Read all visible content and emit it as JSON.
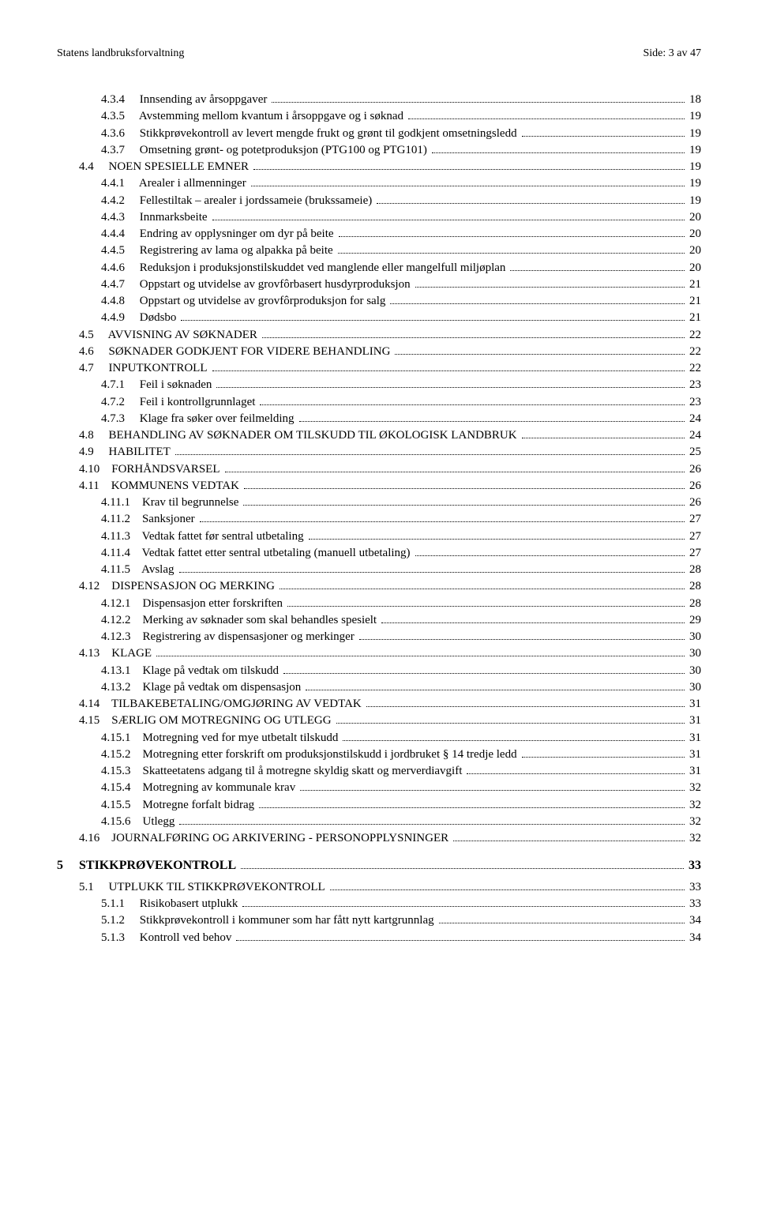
{
  "header": {
    "left": "Statens landbruksforvaltning",
    "right": "Side: 3 av 47"
  },
  "toc": [
    {
      "level": 2,
      "num": "4.3.4",
      "title": "Innsending av årsoppgaver",
      "page": "18"
    },
    {
      "level": 2,
      "num": "4.3.5",
      "title": "Avstemming mellom kvantum i årsoppgave og i søknad",
      "page": "19"
    },
    {
      "level": 2,
      "num": "4.3.6",
      "title": "Stikkprøvekontroll av levert mengde frukt og grønt til godkjent omsetningsledd",
      "page": "19"
    },
    {
      "level": 2,
      "num": "4.3.7",
      "title": "Omsetning grønt- og potetproduksjon (PTG100 og PTG101)",
      "page": "19"
    },
    {
      "level": 1,
      "num": "4.4",
      "title": "NOEN SPESIELLE EMNER",
      "smallcaps": true,
      "page": "19"
    },
    {
      "level": 2,
      "num": "4.4.1",
      "title": "Arealer i allmenninger",
      "page": "19"
    },
    {
      "level": 2,
      "num": "4.4.2",
      "title": "Fellestiltak – arealer i jordssameie (brukssameie)",
      "page": "19"
    },
    {
      "level": 2,
      "num": "4.4.3",
      "title": "Innmarksbeite",
      "page": "20"
    },
    {
      "level": 2,
      "num": "4.4.4",
      "title": "Endring av opplysninger om dyr på beite",
      "page": "20"
    },
    {
      "level": 2,
      "num": "4.4.5",
      "title": "Registrering av lama og alpakka på beite",
      "page": "20"
    },
    {
      "level": 2,
      "num": "4.4.6",
      "title": "Reduksjon i produksjonstilskuddet ved manglende eller mangelfull miljøplan",
      "page": "20"
    },
    {
      "level": 2,
      "num": "4.4.7",
      "title": "Oppstart og utvidelse av grovfôrbasert husdyrproduksjon",
      "page": "21"
    },
    {
      "level": 2,
      "num": "4.4.8",
      "title": "Oppstart og utvidelse av grovfôrproduksjon for salg",
      "page": "21"
    },
    {
      "level": 2,
      "num": "4.4.9",
      "title": "Dødsbo",
      "page": "21"
    },
    {
      "level": 1,
      "num": "4.5",
      "title": "AVVISNING AV SØKNADER",
      "smallcaps": true,
      "page": "22"
    },
    {
      "level": 1,
      "num": "4.6",
      "title": "SØKNADER GODKJENT FOR VIDERE BEHANDLING",
      "smallcaps": true,
      "page": "22"
    },
    {
      "level": 1,
      "num": "4.7",
      "title": "INPUTKONTROLL",
      "smallcaps": true,
      "page": "22"
    },
    {
      "level": 2,
      "num": "4.7.1",
      "title": "Feil i søknaden",
      "page": "23"
    },
    {
      "level": 2,
      "num": "4.7.2",
      "title": "Feil i kontrollgrunnlaget",
      "page": "23"
    },
    {
      "level": 2,
      "num": "4.7.3",
      "title": "Klage fra søker over feilmelding",
      "page": "24"
    },
    {
      "level": 1,
      "num": "4.8",
      "title": "BEHANDLING AV SØKNADER OM TILSKUDD TIL ØKOLOGISK LANDBRUK",
      "smallcaps": true,
      "page": "24"
    },
    {
      "level": 1,
      "num": "4.9",
      "title": "HABILITET",
      "smallcaps": true,
      "page": "25"
    },
    {
      "level": 1,
      "num": "4.10",
      "title": "FORHÅNDSVARSEL",
      "smallcaps": true,
      "page": "26"
    },
    {
      "level": 1,
      "num": "4.11",
      "title": "KOMMUNENS VEDTAK",
      "smallcaps": true,
      "page": "26"
    },
    {
      "level": 2,
      "num": "4.11.1",
      "title": "Krav til begrunnelse",
      "page": "26"
    },
    {
      "level": 2,
      "num": "4.11.2",
      "title": "Sanksjoner",
      "page": "27"
    },
    {
      "level": 2,
      "num": "4.11.3",
      "title": "Vedtak fattet før sentral utbetaling",
      "page": "27"
    },
    {
      "level": 2,
      "num": "4.11.4",
      "title": "Vedtak fattet etter sentral utbetaling (manuell utbetaling)",
      "page": "27"
    },
    {
      "level": 2,
      "num": "4.11.5",
      "title": "Avslag",
      "page": "28"
    },
    {
      "level": 1,
      "num": "4.12",
      "title": "DISPENSASJON OG MERKING",
      "smallcaps": true,
      "page": "28"
    },
    {
      "level": 2,
      "num": "4.12.1",
      "title": "Dispensasjon etter forskriften",
      "page": "28"
    },
    {
      "level": 2,
      "num": "4.12.2",
      "title": "Merking av søknader som skal behandles spesielt",
      "page": "29"
    },
    {
      "level": 2,
      "num": "4.12.3",
      "title": "Registrering av dispensasjoner og merkinger",
      "page": "30"
    },
    {
      "level": 1,
      "num": "4.13",
      "title": "KLAGE",
      "smallcaps": true,
      "page": "30"
    },
    {
      "level": 2,
      "num": "4.13.1",
      "title": "Klage på vedtak om tilskudd",
      "page": "30"
    },
    {
      "level": 2,
      "num": "4.13.2",
      "title": "Klage på vedtak om dispensasjon",
      "page": "30"
    },
    {
      "level": 1,
      "num": "4.14",
      "title": "TILBAKEBETALING/OMGJØRING AV VEDTAK",
      "smallcaps": true,
      "page": "31"
    },
    {
      "level": 1,
      "num": "4.15",
      "title": "SÆRLIG OM MOTREGNING OG UTLEGG",
      "smallcaps": true,
      "page": "31"
    },
    {
      "level": 2,
      "num": "4.15.1",
      "title": "Motregning ved for mye utbetalt tilskudd",
      "page": "31"
    },
    {
      "level": 2,
      "num": "4.15.2",
      "title": "Motregning etter forskrift om produksjonstilskudd i jordbruket § 14 tredje ledd",
      "page": "31"
    },
    {
      "level": 2,
      "num": "4.15.3",
      "title": "Skatteetatens adgang til å motregne skyldig skatt og merverdiavgift",
      "page": "31"
    },
    {
      "level": 2,
      "num": "4.15.4",
      "title": "Motregning av kommunale krav",
      "page": "32"
    },
    {
      "level": 2,
      "num": "4.15.5",
      "title": "Motregne forfalt bidrag",
      "page": "32"
    },
    {
      "level": 2,
      "num": "4.15.6",
      "title": "Utlegg",
      "page": "32"
    },
    {
      "level": 1,
      "num": "4.16",
      "title": "JOURNALFØRING OG ARKIVERING - PERSONOPPLYSNINGER",
      "smallcaps": true,
      "page": "32"
    },
    {
      "level": 0,
      "num": "5",
      "title": "STIKKPRØVEKONTROLL",
      "page": "33",
      "bold": true
    },
    {
      "level": 1,
      "num": "5.1",
      "title": "UTPLUKK TIL STIKKPRØVEKONTROLL",
      "smallcaps": true,
      "page": "33"
    },
    {
      "level": 2,
      "num": "5.1.1",
      "title": "Risikobasert utplukk",
      "page": "33"
    },
    {
      "level": 2,
      "num": "5.1.2",
      "title": "Stikkprøvekontroll i kommuner som har fått nytt kartgrunnlag",
      "page": "34"
    },
    {
      "level": 2,
      "num": "5.1.3",
      "title": "Kontroll ved behov",
      "page": "34"
    }
  ]
}
